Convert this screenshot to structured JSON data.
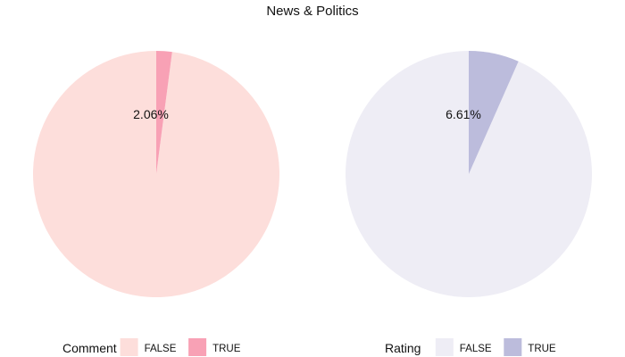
{
  "title": "News & Politics",
  "chart_data": [
    {
      "type": "pie",
      "legend_title": "Comment",
      "categories": [
        "FALSE",
        "TRUE"
      ],
      "values": [
        97.94,
        2.06
      ],
      "colors": [
        "#fddedb",
        "#f8a1b5"
      ],
      "label": "2.06%",
      "legend_position": "bottom"
    },
    {
      "type": "pie",
      "legend_title": "Rating",
      "categories": [
        "FALSE",
        "TRUE"
      ],
      "values": [
        93.39,
        6.61
      ],
      "colors": [
        "#eeedf5",
        "#bcbcdc"
      ],
      "label": "6.61%",
      "legend_position": "bottom"
    }
  ]
}
